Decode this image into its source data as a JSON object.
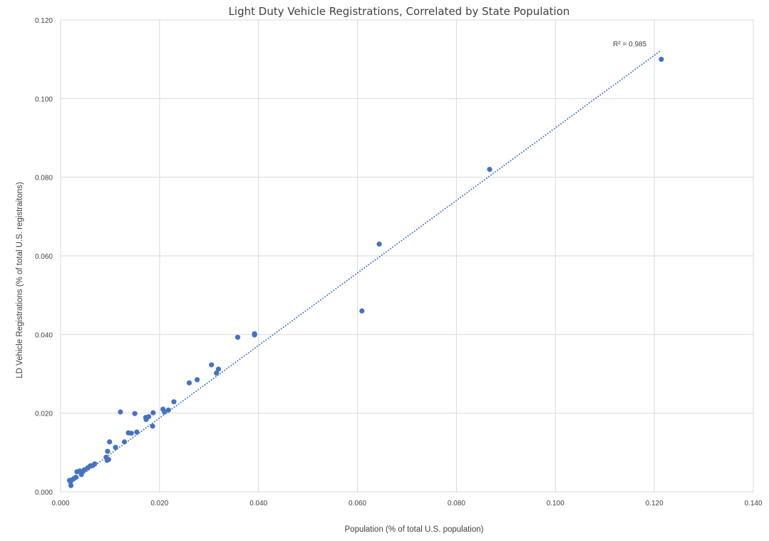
{
  "chart_data": {
    "type": "scatter",
    "title": "Light Duty Vehicle Registrations, Correlated by State Population",
    "xlabel": "Population (% of total U.S. population)",
    "ylabel": "LD Vehicle Registrations (% of total U.S. registraitons)",
    "xlim": [
      0.0,
      0.14
    ],
    "ylim": [
      0.0,
      0.12
    ],
    "x_ticks": [
      "0.000",
      "0.020",
      "0.040",
      "0.060",
      "0.080",
      "0.100",
      "0.120",
      "0.140"
    ],
    "y_ticks": [
      "0.000",
      "0.020",
      "0.040",
      "0.060",
      "0.080",
      "0.100",
      "0.120"
    ],
    "x_tick_values": [
      0.0,
      0.02,
      0.04,
      0.06,
      0.08,
      0.1,
      0.12,
      0.14
    ],
    "y_tick_values": [
      0.0,
      0.02,
      0.04,
      0.06,
      0.08,
      0.1,
      0.12
    ],
    "grid": true,
    "point_color": "#4472C4",
    "trendline": {
      "style": "dotted",
      "color": "#4472C4",
      "label": "R² = 0.985",
      "start": [
        0.0017,
        0.0019
      ],
      "end": [
        0.1213,
        0.1122
      ]
    },
    "points": [
      [
        0.1214,
        0.11
      ],
      [
        0.0867,
        0.082
      ],
      [
        0.0644,
        0.063
      ],
      [
        0.0609,
        0.046
      ],
      [
        0.0392,
        0.0402
      ],
      [
        0.0392,
        0.0399
      ],
      [
        0.0358,
        0.0393
      ],
      [
        0.0305,
        0.0323
      ],
      [
        0.0319,
        0.0312
      ],
      [
        0.0315,
        0.0302
      ],
      [
        0.0276,
        0.0285
      ],
      [
        0.026,
        0.0277
      ],
      [
        0.0229,
        0.0229
      ],
      [
        0.0218,
        0.0208
      ],
      [
        0.021,
        0.0203
      ],
      [
        0.0207,
        0.021
      ],
      [
        0.0187,
        0.0201
      ],
      [
        0.0186,
        0.0167
      ],
      [
        0.0178,
        0.0191
      ],
      [
        0.0173,
        0.0184
      ],
      [
        0.0172,
        0.0189
      ],
      [
        0.015,
        0.0199
      ],
      [
        0.0154,
        0.0152
      ],
      [
        0.0143,
        0.0149
      ],
      [
        0.0137,
        0.015
      ],
      [
        0.0129,
        0.0127
      ],
      [
        0.0121,
        0.0203
      ],
      [
        0.0111,
        0.0113
      ],
      [
        0.0099,
        0.0127
      ],
      [
        0.0095,
        0.0103
      ],
      [
        0.0097,
        0.0082
      ],
      [
        0.0094,
        0.008
      ],
      [
        0.0092,
        0.0088
      ],
      [
        0.0069,
        0.0071
      ],
      [
        0.0065,
        0.0067
      ],
      [
        0.006,
        0.0066
      ],
      [
        0.0055,
        0.0061
      ],
      [
        0.0048,
        0.0056
      ],
      [
        0.0043,
        0.005
      ],
      [
        0.0042,
        0.0044
      ],
      [
        0.0039,
        0.0053
      ],
      [
        0.0033,
        0.0051
      ],
      [
        0.0031,
        0.0037
      ],
      [
        0.0027,
        0.0034
      ],
      [
        0.0022,
        0.003
      ],
      [
        0.002,
        0.0026
      ],
      [
        0.0018,
        0.0029
      ],
      [
        0.0021,
        0.0016
      ]
    ]
  }
}
